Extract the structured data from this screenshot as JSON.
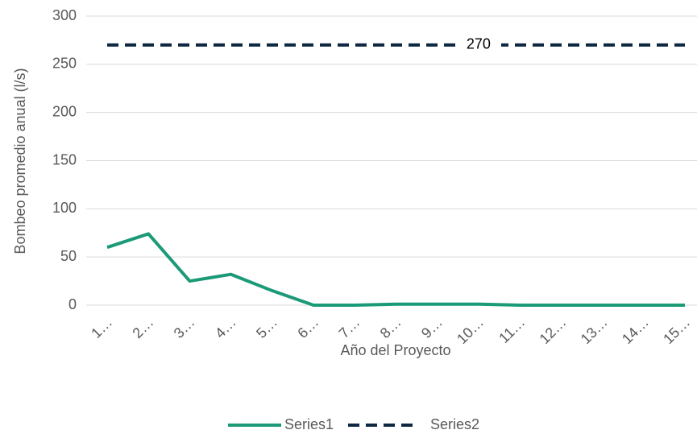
{
  "chart_data": {
    "type": "line",
    "y_label": "Bombeo promedio anual (l/s)",
    "x_label": "Año del Proyecto",
    "categories": [
      "1…",
      "2…",
      "3…",
      "4…",
      "5…",
      "6…",
      "7…",
      "8…",
      "9…",
      "10…",
      "11…",
      "12…",
      "13…",
      "14…",
      "15…"
    ],
    "series": [
      {
        "name": "Series1",
        "color": "#1b9a77",
        "dashed": false,
        "values": [
          60,
          74,
          25,
          32,
          15,
          0,
          0,
          1,
          1,
          1,
          0,
          0,
          0,
          0,
          0
        ]
      },
      {
        "name": "Series2",
        "color": "#0e2841",
        "dashed": true,
        "values": [
          270,
          270,
          270,
          270,
          270,
          270,
          270,
          270,
          270,
          270,
          270,
          270,
          270,
          270,
          270
        ],
        "value_labels": [
          null,
          null,
          null,
          null,
          null,
          null,
          null,
          null,
          null,
          "270",
          null,
          null,
          null,
          null,
          null
        ]
      }
    ],
    "ylim": [
      0,
      300
    ],
    "yticks": [
      0,
      50,
      100,
      150,
      200,
      250,
      300
    ],
    "grid": true,
    "legend": "bottom"
  }
}
